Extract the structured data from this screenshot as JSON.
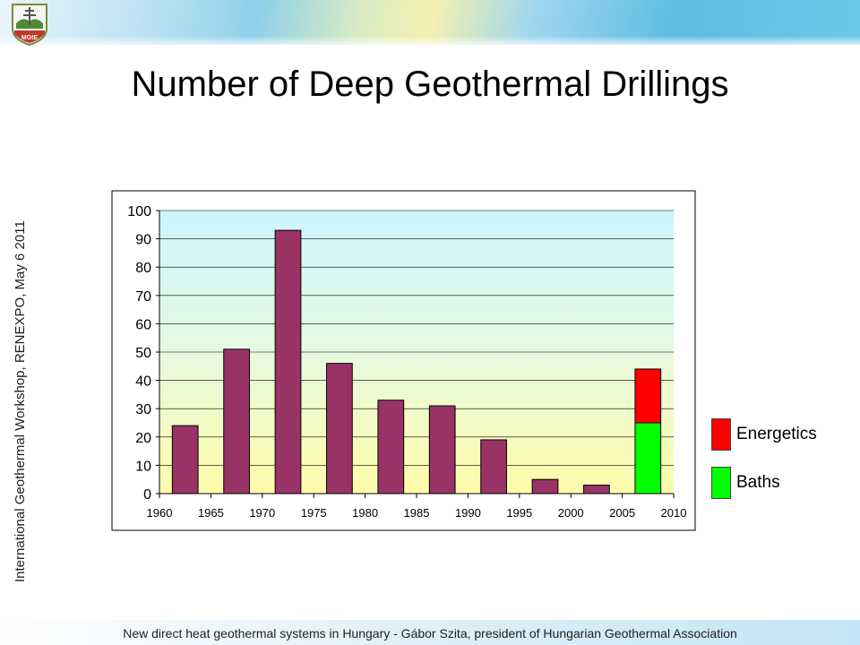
{
  "header": {
    "logo_text": "MGtE"
  },
  "side_text": "International Geothermal Workshop, RENEXPO, May 6 2011",
  "title": "Number of Deep Geothermal Drillings",
  "footer": "New direct heat geothermal systems in Hungary - Gábor Szita, president of Hungarian Geothermal Association",
  "chart_data": {
    "type": "bar",
    "stacked": true,
    "x": [
      1962.5,
      1967.5,
      1972.5,
      1977.5,
      1982.5,
      1987.5,
      1992.5,
      1997.5,
      2002.5,
      2007.5
    ],
    "xlim": [
      1960,
      2010
    ],
    "xticks": [
      "1960",
      "1965",
      "1970",
      "1975",
      "1980",
      "1985",
      "1990",
      "1995",
      "2000",
      "2005",
      "2010"
    ],
    "ylim": [
      0,
      100
    ],
    "yticks": [
      "0",
      "10",
      "20",
      "30",
      "40",
      "50",
      "60",
      "70",
      "80",
      "90",
      "100"
    ],
    "series": [
      {
        "values": [
          24,
          51,
          93,
          46,
          33,
          31,
          19,
          5,
          3,
          0
        ],
        "color": "#993366"
      },
      {
        "name": "Baths",
        "values": [
          0,
          0,
          0,
          0,
          0,
          0,
          0,
          0,
          0,
          25
        ],
        "color": "#00ff00"
      },
      {
        "name": "Energetics",
        "values": [
          0,
          0,
          0,
          0,
          0,
          0,
          0,
          0,
          0,
          19
        ],
        "color": "#ff0000"
      }
    ],
    "legend": [
      "Energetics",
      "Baths"
    ],
    "legend_position": "right",
    "grid": true
  }
}
